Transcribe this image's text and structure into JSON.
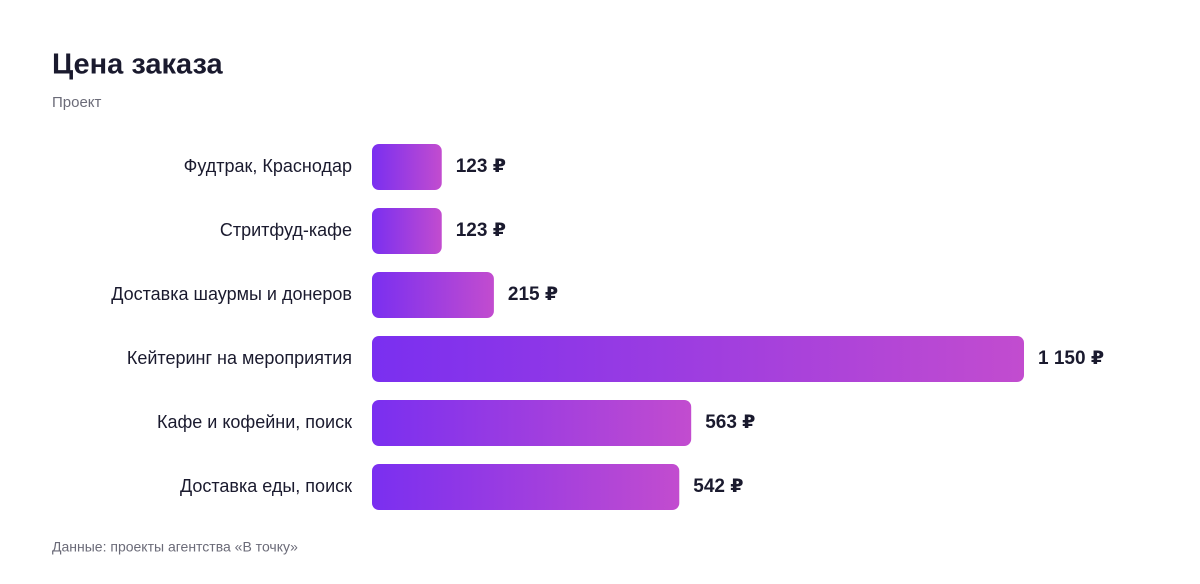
{
  "chart_data": {
    "type": "bar",
    "orientation": "horizontal",
    "title": "Цена заказа",
    "subtitle": "Проект",
    "categories": [
      "Фудтрак, Краснодар",
      "Стритфуд-кафе",
      "Доставка шаурмы и донеров",
      "Кейтеринг на мероприятия",
      "Кафе и кофейни, поиск",
      "Доставка еды, поиск"
    ],
    "values": [
      123,
      123,
      215,
      1150,
      563,
      542
    ],
    "value_labels": [
      "123 ₽",
      "123 ₽",
      "215 ₽",
      "1 150 ₽",
      "563 ₽",
      "542 ₽"
    ],
    "color": "#9b3ee0",
    "source": "Данные: проекты агентства «В точку»"
  }
}
